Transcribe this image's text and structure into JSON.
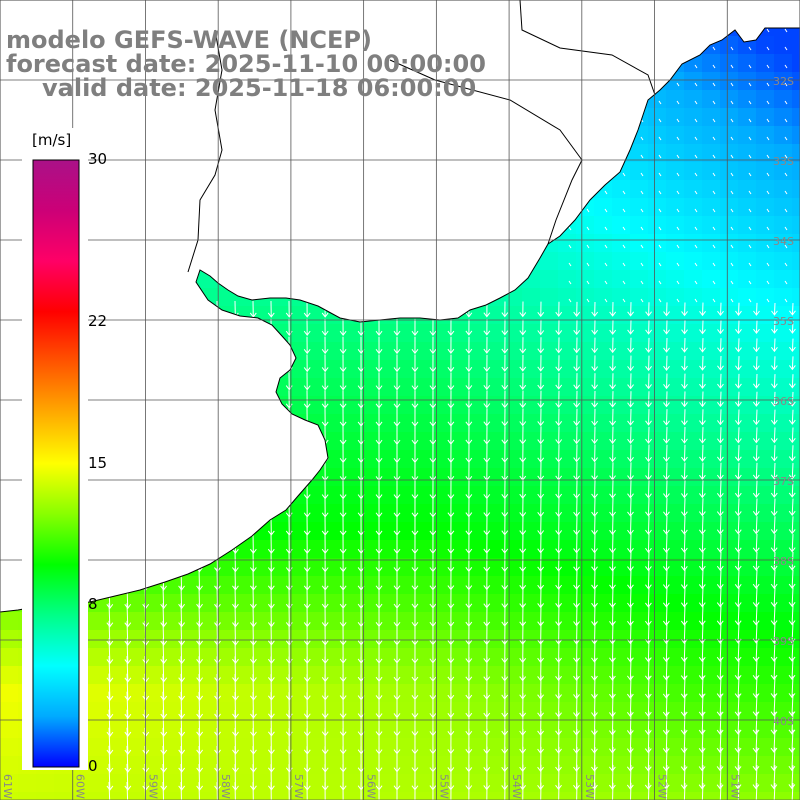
{
  "header": {
    "model": "modelo GEFS-WAVE (NCEP)",
    "forecast": "forecast date: 2025-11-10 00:00:00",
    "valid": "valid date: 2025-11-18 06:00:00"
  },
  "colorbar": {
    "unit": "[m/s]",
    "ticks": [
      {
        "value": 30,
        "label": "30"
      },
      {
        "value": 22,
        "label": "22"
      },
      {
        "value": 15,
        "label": "15"
      },
      {
        "value": 8,
        "label": "8"
      },
      {
        "value": 0,
        "label": "0"
      }
    ],
    "colors": [
      "#0000ff",
      "#00aaff",
      "#00ffff",
      "#00ff88",
      "#00ff00",
      "#88ff00",
      "#ffff00",
      "#ffaa00",
      "#ff5500",
      "#ff0000",
      "#ff0066",
      "#cc0077",
      "#aa1188"
    ],
    "range": [
      0,
      30
    ]
  },
  "map": {
    "region": "Río de la Plata / Uruguay coast, South Atlantic",
    "lat_labels": [
      "32S",
      "33S",
      "34S",
      "35S",
      "36S",
      "37S",
      "38S",
      "39S",
      "40S"
    ],
    "lon_labels": [
      "61W",
      "60W",
      "59W",
      "58W",
      "57W",
      "56W",
      "55W",
      "54W",
      "53W",
      "52W",
      "51W"
    ],
    "lon_range": [
      -61,
      -50
    ],
    "lat_range": [
      -41,
      -31
    ],
    "land_color": "#ffffff",
    "grid_color": "#555555",
    "arrow_color": "#ffffff",
    "coast_color": "#000000"
  }
}
